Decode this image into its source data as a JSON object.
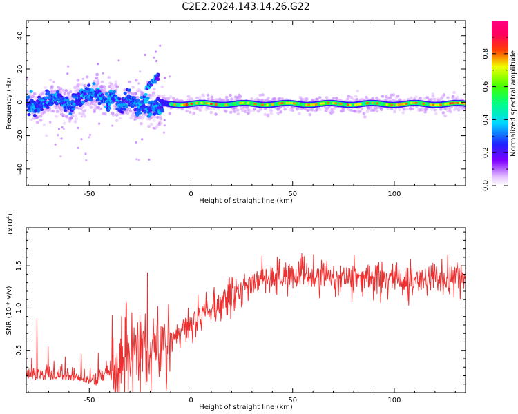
{
  "title": "C2E2.2024.143.14.26.G22",
  "colors": {
    "snr_line": "#f03030",
    "background": "#ffffff"
  },
  "chart_data": [
    {
      "type": "heatmap",
      "name": "spectrogram",
      "xlabel": "Height of straight line (km)",
      "ylabel": "Frequency (Hz)",
      "xlim": [
        -81,
        135
      ],
      "ylim": [
        -50,
        49
      ],
      "xticks": [
        "-50",
        "0",
        "50",
        "100"
      ],
      "xtick_values": [
        -50,
        0,
        50,
        100
      ],
      "yticks": [
        "-40",
        "-20",
        "0",
        "20",
        "40"
      ],
      "ytick_values": [
        -40,
        -20,
        0,
        20,
        40
      ],
      "colorbar": {
        "label": "Normalized spectral amplitude",
        "range": [
          0,
          1
        ],
        "ticks": [
          "0.0",
          "0.2",
          "0.4",
          "0.6",
          "0.8"
        ],
        "tick_values": [
          0.0,
          0.2,
          0.4,
          0.6,
          0.8
        ],
        "colormap": "rainbow (white-violet-blue-cyan-green-yellow-red-magenta)"
      },
      "features": {
        "carrier_band": {
          "x_range": [
            -14,
            135
          ],
          "frequency_hz": -1,
          "amplitude": 0.8
        },
        "scattered_band": {
          "x_range": [
            -81,
            -14
          ],
          "frequency_range_hz": [
            -5,
            12
          ],
          "amplitude": 0.4
        },
        "rising_streak": {
          "x_range": [
            -22,
            -16
          ],
          "frequency_range_hz": [
            8,
            16
          ]
        }
      }
    },
    {
      "type": "line",
      "name": "snr",
      "xlabel": "Height of straight line (km)",
      "ylabel": "SNR (10 * v/v)",
      "y_multiplier": "(x10",
      "y_multiplier_exp": "4",
      "y_multiplier_close": ")",
      "xlim": [
        -81,
        135
      ],
      "ylim": [
        0.0,
        1.95
      ],
      "xticks": [
        "-50",
        "0",
        "50",
        "100"
      ],
      "xtick_values": [
        -50,
        0,
        50,
        100
      ],
      "yticks": [
        "0.5",
        "1.0",
        "1.5"
      ],
      "ytick_values": [
        0.5,
        1.0,
        1.5
      ],
      "series": [
        {
          "trend_x": [
            -81,
            -60,
            -45,
            -40,
            -30,
            -25,
            -20,
            -15,
            -10,
            -5,
            0,
            10,
            20,
            30,
            40,
            50,
            70,
            90,
            110,
            135
          ],
          "trend_y": [
            0.15,
            0.15,
            0.08,
            0.2,
            0.42,
            0.55,
            0.55,
            0.55,
            0.62,
            0.75,
            0.85,
            1.0,
            1.15,
            1.3,
            1.35,
            1.38,
            1.37,
            1.35,
            1.33,
            1.33
          ]
        }
      ]
    }
  ]
}
